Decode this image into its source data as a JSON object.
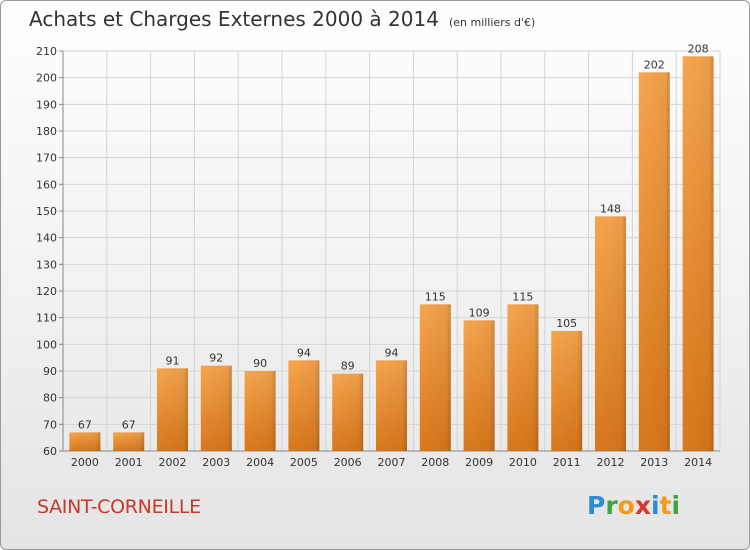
{
  "title": "Achats et Charges Externes 2000 à 2014",
  "subtitle": "(en milliers d'€)",
  "commune": "SAINT-CORNEILLE",
  "logo": {
    "text": "Proxiti",
    "letters": [
      {
        "ch": "P",
        "color": "#2e8bd6"
      },
      {
        "ch": "r",
        "color": "#3aa542"
      },
      {
        "ch": "o",
        "color": "#f29a1c"
      },
      {
        "ch": "x",
        "color": "#d63a2a"
      },
      {
        "ch": "i",
        "color": "#2e8bd6"
      },
      {
        "ch": "t",
        "color": "#f29a1c"
      },
      {
        "ch": "i",
        "color": "#3aa542"
      }
    ]
  },
  "chart_data": {
    "type": "bar",
    "categories": [
      "2000",
      "2001",
      "2002",
      "2003",
      "2004",
      "2005",
      "2006",
      "2007",
      "2008",
      "2009",
      "2010",
      "2011",
      "2012",
      "2013",
      "2014"
    ],
    "values": [
      67,
      67,
      91,
      92,
      90,
      94,
      89,
      94,
      115,
      109,
      115,
      105,
      148,
      202,
      208
    ],
    "ylim": [
      60,
      210
    ],
    "yticks": [
      60,
      70,
      80,
      90,
      100,
      110,
      120,
      130,
      140,
      150,
      160,
      170,
      180,
      190,
      200,
      210
    ],
    "grid": true,
    "bar_color_top": "#f7a54e",
    "bar_color_bottom": "#d9781c"
  }
}
